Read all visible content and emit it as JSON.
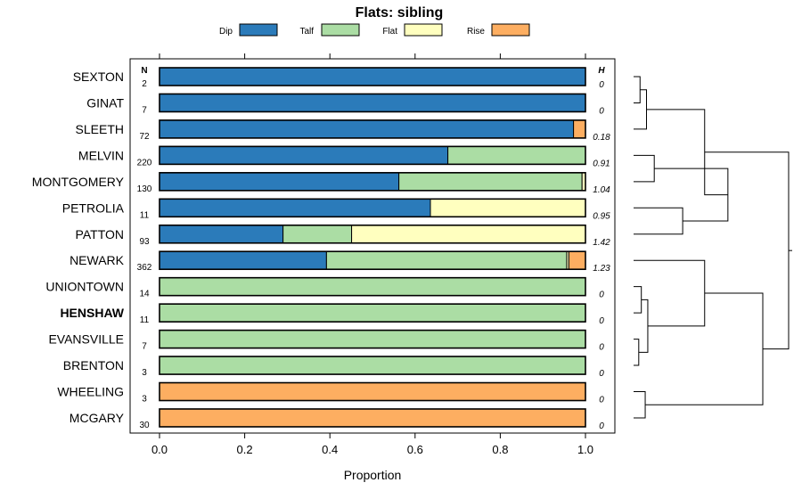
{
  "chart_data": {
    "type": "bar",
    "orientation": "horizontal-stacked",
    "title": "Flats: sibling",
    "xlabel": "Proportion",
    "xlim": [
      0,
      1
    ],
    "xticks": [
      "0.0",
      "0.2",
      "0.4",
      "0.6",
      "0.8",
      "1.0"
    ],
    "xtick_values": [
      0,
      0.2,
      0.4,
      0.6,
      0.8,
      1.0
    ],
    "n_header": "N",
    "h_header": "H",
    "series": [
      {
        "name": "Dip",
        "color": "#2b7bba"
      },
      {
        "name": "Talf",
        "color": "#abdda4"
      },
      {
        "name": "Flat",
        "color": "#ffffbf"
      },
      {
        "name": "Rise",
        "color": "#fdae61"
      }
    ],
    "rows": [
      {
        "label": "SEXTON",
        "bold": false,
        "n": "2",
        "h": "0",
        "values": [
          1.0,
          0,
          0,
          0
        ]
      },
      {
        "label": "GINAT",
        "bold": false,
        "n": "7",
        "h": "0",
        "values": [
          1.0,
          0,
          0,
          0
        ]
      },
      {
        "label": "SLEETH",
        "bold": false,
        "n": "72",
        "h": "0.18",
        "values": [
          0.972,
          0,
          0,
          0.028
        ]
      },
      {
        "label": "MELVIN",
        "bold": false,
        "n": "220",
        "h": "0.91",
        "values": [
          0.677,
          0.323,
          0,
          0
        ]
      },
      {
        "label": "MONTGOMERY",
        "bold": false,
        "n": "130",
        "h": "1.04",
        "values": [
          0.562,
          0.43,
          0.008,
          0
        ]
      },
      {
        "label": "PETROLIA",
        "bold": false,
        "n": "11",
        "h": "0.95",
        "values": [
          0.636,
          0,
          0.364,
          0
        ]
      },
      {
        "label": "PATTON",
        "bold": false,
        "n": "93",
        "h": "1.42",
        "values": [
          0.29,
          0.161,
          0.549,
          0
        ]
      },
      {
        "label": "NEWARK",
        "bold": false,
        "n": "362",
        "h": "1.23",
        "values": [
          0.392,
          0.564,
          0.005,
          0.039
        ]
      },
      {
        "label": "UNIONTOWN",
        "bold": false,
        "n": "14",
        "h": "0",
        "values": [
          0,
          1.0,
          0,
          0
        ]
      },
      {
        "label": "HENSHAW",
        "bold": true,
        "n": "11",
        "h": "0",
        "values": [
          0,
          1.0,
          0,
          0
        ]
      },
      {
        "label": "EVANSVILLE",
        "bold": false,
        "n": "7",
        "h": "0",
        "values": [
          0,
          1.0,
          0,
          0
        ]
      },
      {
        "label": "BRENTON",
        "bold": false,
        "n": "3",
        "h": "0",
        "values": [
          0,
          1.0,
          0,
          0
        ]
      },
      {
        "label": "WHEELING",
        "bold": false,
        "n": "3",
        "h": "0",
        "values": [
          0,
          0,
          0,
          1.0
        ]
      },
      {
        "label": "MCGARY",
        "bold": false,
        "n": "30",
        "h": "0",
        "values": [
          0,
          0,
          0,
          1.0
        ]
      }
    ],
    "dendrogram": {
      "leaves": [
        "SEXTON",
        "GINAT",
        "SLEETH",
        "MELVIN",
        "MONTGOMERY",
        "PETROLIA",
        "PATTON",
        "NEWARK",
        "UNIONTOWN",
        "HENSHAW",
        "EVANSVILLE",
        "BRENTON",
        "WHEELING",
        "MCGARY"
      ],
      "merges": [
        [
          0,
          1,
          0.05
        ],
        [
          -1,
          2,
          0.1
        ],
        [
          3,
          4,
          0.16
        ],
        [
          5,
          6,
          0.38
        ],
        [
          -3,
          -4,
          0.73
        ],
        [
          -2,
          -5,
          0.55
        ],
        [
          8,
          9,
          0.06
        ],
        [
          10,
          11,
          0.04
        ],
        [
          -7,
          -8,
          0.11
        ],
        [
          -9,
          7,
          0.55
        ],
        [
          12,
          13,
          0.09
        ],
        [
          -10,
          -11,
          1.0
        ],
        [
          -6,
          -12,
          1.2
        ]
      ],
      "max_height": 1.2
    }
  }
}
